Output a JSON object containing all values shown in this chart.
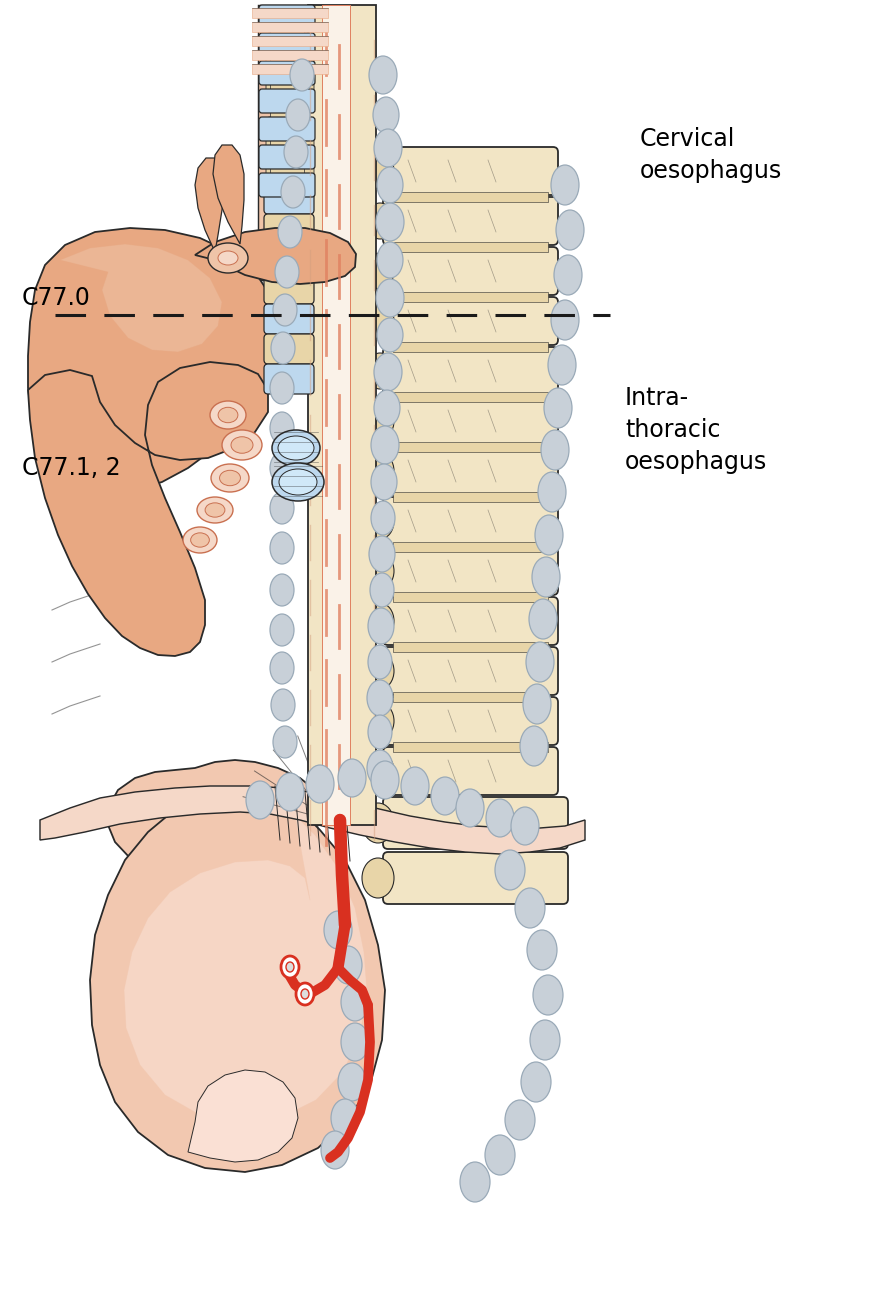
{
  "background_color": "#ffffff",
  "label_c770": "C77.0",
  "label_c7712": "C77.1, 2",
  "label_cervical": "Cervical\noesophagus",
  "label_intrathoracic": "Intra-\nthoracic\noesophagus",
  "skin_color": "#E8A882",
  "skin_light": "#EFC4A8",
  "skin_lighter": "#F5D8C8",
  "skin_dark": "#C97050",
  "bone_color": "#E8D5A8",
  "bone_light": "#F2E5C5",
  "blue_light": "#BDD8EE",
  "blue_med": "#90C0E0",
  "lymph_fill": "#C8D0D8",
  "lymph_edge": "#9AAAB8",
  "red_vessel": "#D93020",
  "line_color": "#2a2a2a",
  "stripe_color": "#E08060",
  "stomach_fill": "#F2C8B0",
  "stomach_light": "#FAE0D4"
}
